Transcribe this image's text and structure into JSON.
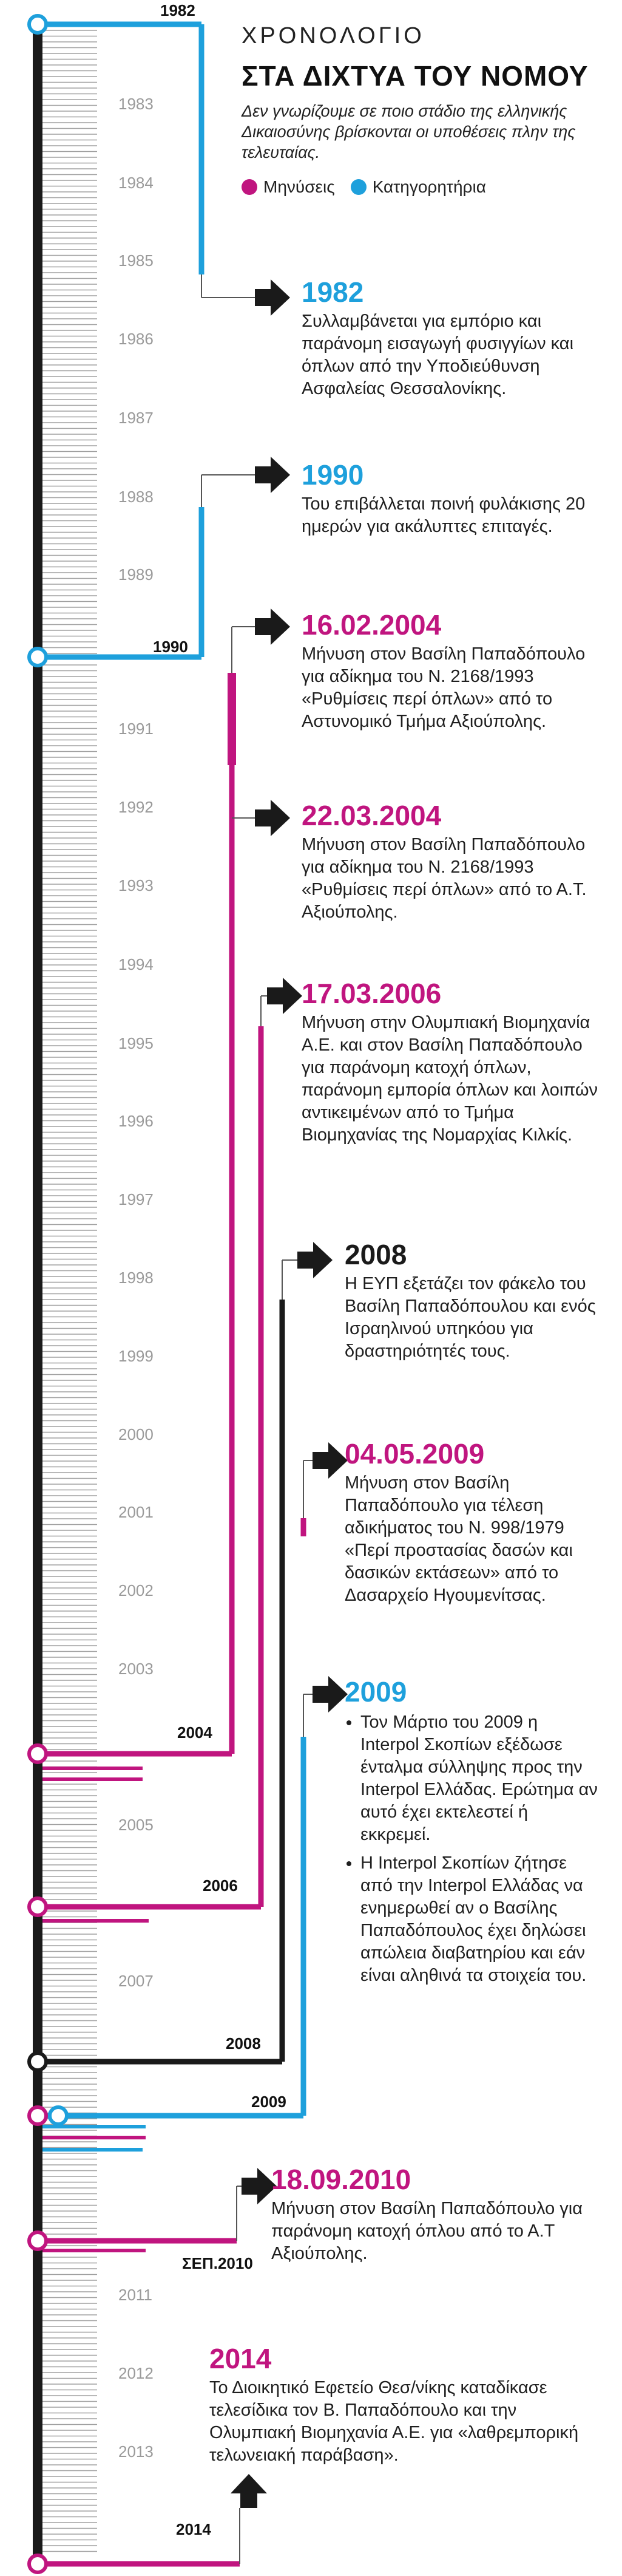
{
  "header": {
    "kicker": "ΧΡΟΝΟΛΟΓΙΟ",
    "title": "ΣΤΑ ΔΙΧΤΥΑ ΤΟΥ ΝΟΜΟΥ",
    "subtitle": "Δεν γνωρίζουμε σε ποιο στάδιο της ελληνικής Δικαιοσύνης βρίσκονται οι υποθέσεις πλην της τελευταίας."
  },
  "legend": [
    {
      "label": "Μηνύσεις",
      "color": "#c0157f"
    },
    {
      "label": "Κατηγορητήρια",
      "color": "#1ea0dc"
    }
  ],
  "colors": {
    "magenta": "#c0157f",
    "blue": "#1ea0dc",
    "black": "#1a1a1a",
    "year": "#9a9a9a"
  },
  "years": [
    "1982",
    "1983",
    "1984",
    "1985",
    "1986",
    "1987",
    "1988",
    "1989",
    "1990",
    "1991",
    "1992",
    "1993",
    "1994",
    "1995",
    "1996",
    "1997",
    "1998",
    "1999",
    "2000",
    "2001",
    "2002",
    "2003",
    "2004",
    "2005",
    "2006",
    "2007",
    "2008",
    "2009",
    "ΣΕΠ.2010",
    "2011",
    "2012",
    "2013",
    "2014"
  ],
  "end_labels": [
    "1982",
    "1990",
    "2004",
    "2006",
    "2008",
    "2009",
    "ΣΕΠ.2010",
    "2014"
  ],
  "events": [
    {
      "date": "1982",
      "desc": "Συλλαμβάνεται για εμπόριο και παράνομη εισαγωγή φυσιγγίων και όπλων από την Υποδιεύθυνση Ασφαλείας Θεσσαλονίκης."
    },
    {
      "date": "1990",
      "desc": "Του επιβάλλεται ποινή φυλάκισης 20 ημερών για ακάλυπτες επιταγές."
    },
    {
      "date": "16.02.2004",
      "desc": "Μήνυση στον Βασίλη Παπαδόπουλο για αδίκημα του Ν. 2168/1993 «Ρυθμίσεις περί όπλων» από το Αστυνομικό Τμήμα Αξιούπολης."
    },
    {
      "date": "22.03.2004",
      "desc": "Μήνυση στον Βασίλη Παπαδόπουλο για αδίκημα του Ν. 2168/1993 «Ρυθμίσεις περί όπλων» από το Α.Τ. Αξιούπολης."
    },
    {
      "date": "17.03.2006",
      "desc": "Μήνυση στην Ολυμπιακή Βιομηχανία Α.Ε. και στον Βασίλη Παπαδόπουλο για παράνομη κατοχή όπλων, παράνομη εμπορία όπλων και λοιπών αντικειμένων από το Τμήμα Βιομηχανίας της Νομαρχίας Κιλκίς."
    },
    {
      "date": "2008",
      "desc": "Η ΕΥΠ εξετάζει τον φάκελο του Βασίλη Παπαδόπουλου και ενός Ισραηλινού υπηκόου για δραστηριότητές τους."
    },
    {
      "date": "04.05.2009",
      "desc": "Μήνυση στον Βασίλη Παπαδόπουλο για τέλεση αδικήματος του Ν. 998/1979 «Περί προστασίας δασών και δασικών εκτάσεων» από το Δασαρχείο Ηγουμενίτσας."
    },
    {
      "date": "2009",
      "bullets": [
        "Τον Μάρτιο του 2009 η Interpol Σκοπίων εξέδωσε ένταλμα σύλληψης προς την Interpol Ελλάδας. Ερώτημα αν αυτό έχει εκτελεστεί ή εκκρεμεί.",
        "Η Interpol Σκοπίων ζήτησε από την Interpol Ελλάδας να ενημερωθεί αν ο Βασίλης Παπαδόπουλος έχει δηλώσει απώλεια διαβατηρίου και εάν είναι αληθινά τα στοιχεία του."
      ]
    },
    {
      "date": "18.09.2010",
      "desc": "Μήνυση στον Βασίλη Παπαδόπουλο για παράνομη κατοχή όπλου από το Α.Τ Αξιούπολης."
    },
    {
      "date": "2014",
      "desc": "Το Διοικητικό Εφετείο Θεσ/νίκης καταδίκασε τελεσίδικα τον Β. Παπαδόπουλο και την Ολυμπιακή Βιομηχανία Α.Ε. για «λαθρεμπορική τελωνειακή παράβαση»."
    }
  ]
}
